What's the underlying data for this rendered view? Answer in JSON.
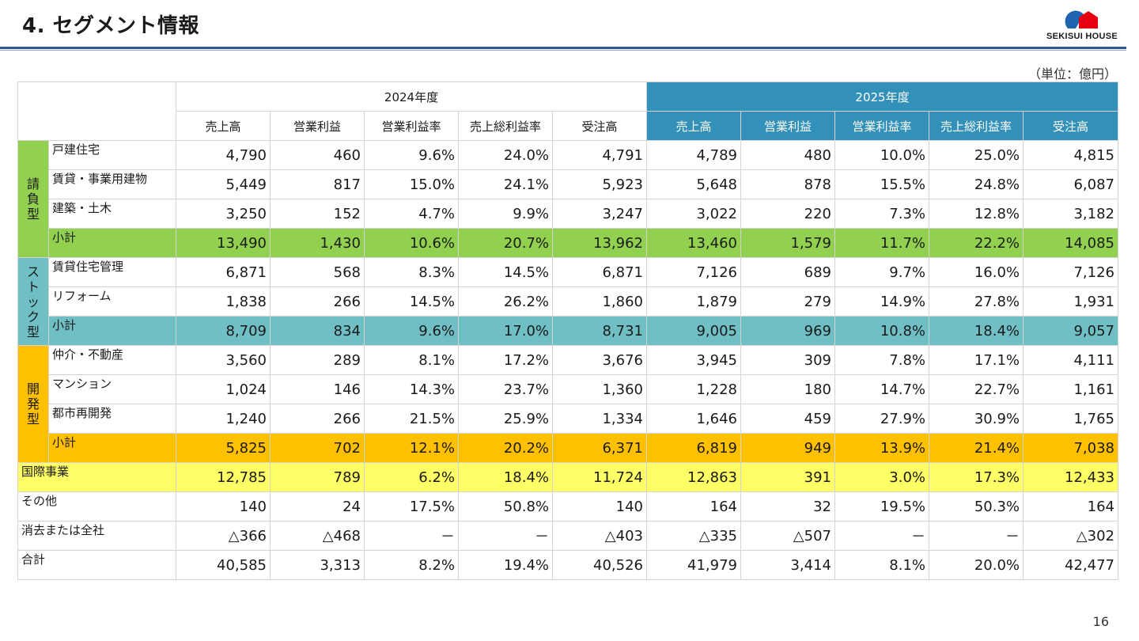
{
  "title": "4. セグメント情報",
  "logo": {
    "text": "SEKISUI HOUSE"
  },
  "unit": "（単位：億円）",
  "page_number": "16",
  "colors": {
    "header_2025": "#3391b9",
    "contract": "#92d050",
    "stock": "#6fbfc5",
    "development": "#ffc000",
    "international": "#ffff66",
    "title_rule": "#2f5597"
  },
  "years": [
    "2024年度",
    "2025年度"
  ],
  "columns": [
    "売上高",
    "営業利益",
    "営業利益率",
    "売上総利益率",
    "受注高",
    "売上高",
    "営業利益",
    "営業利益率",
    "売上総利益率",
    "受注高"
  ],
  "groups": [
    {
      "name": "請負型",
      "rows": [
        {
          "label": "戸建住宅",
          "values": [
            "4,790",
            "460",
            "9.6%",
            "24.0%",
            "4,791",
            "4,789",
            "480",
            "10.0%",
            "25.0%",
            "4,815"
          ]
        },
        {
          "label": "賃貸・事業用建物",
          "values": [
            "5,449",
            "817",
            "15.0%",
            "24.1%",
            "5,923",
            "5,648",
            "878",
            "15.5%",
            "24.8%",
            "6,087"
          ]
        },
        {
          "label": "建築・土木",
          "values": [
            "3,250",
            "152",
            "4.7%",
            "9.9%",
            "3,247",
            "3,022",
            "220",
            "7.3%",
            "12.8%",
            "3,182"
          ]
        }
      ],
      "subtotal": {
        "label": "小計",
        "values": [
          "13,490",
          "1,430",
          "10.6%",
          "20.7%",
          "13,962",
          "13,460",
          "1,579",
          "11.7%",
          "22.2%",
          "14,085"
        ]
      }
    },
    {
      "name": "ストック型",
      "rows": [
        {
          "label": "賃貸住宅管理",
          "values": [
            "6,871",
            "568",
            "8.3%",
            "14.5%",
            "6,871",
            "7,126",
            "689",
            "9.7%",
            "16.0%",
            "7,126"
          ]
        },
        {
          "label": "リフォーム",
          "values": [
            "1,838",
            "266",
            "14.5%",
            "26.2%",
            "1,860",
            "1,879",
            "279",
            "14.9%",
            "27.8%",
            "1,931"
          ]
        }
      ],
      "subtotal": {
        "label": "小計",
        "values": [
          "8,709",
          "834",
          "9.6%",
          "17.0%",
          "8,731",
          "9,005",
          "969",
          "10.8%",
          "18.4%",
          "9,057"
        ]
      }
    },
    {
      "name": "開発型",
      "rows": [
        {
          "label": "仲介・不動産",
          "values": [
            "3,560",
            "289",
            "8.1%",
            "17.2%",
            "3,676",
            "3,945",
            "309",
            "7.8%",
            "17.1%",
            "4,111"
          ]
        },
        {
          "label": "マンション",
          "values": [
            "1,024",
            "146",
            "14.3%",
            "23.7%",
            "1,360",
            "1,228",
            "180",
            "14.7%",
            "22.7%",
            "1,161"
          ]
        },
        {
          "label": "都市再開発",
          "values": [
            "1,240",
            "266",
            "21.5%",
            "25.9%",
            "1,334",
            "1,646",
            "459",
            "27.9%",
            "30.9%",
            "1,765"
          ]
        }
      ],
      "subtotal": {
        "label": "小計",
        "values": [
          "5,825",
          "702",
          "12.1%",
          "20.2%",
          "6,371",
          "6,819",
          "949",
          "13.9%",
          "21.4%",
          "7,038"
        ]
      }
    }
  ],
  "other_rows": [
    {
      "label": "国際事業",
      "values": [
        "12,785",
        "789",
        "6.2%",
        "18.4%",
        "11,724",
        "12,863",
        "391",
        "3.0%",
        "17.3%",
        "12,433"
      ]
    },
    {
      "label": "その他",
      "values": [
        "140",
        "24",
        "17.5%",
        "50.8%",
        "140",
        "164",
        "32",
        "19.5%",
        "50.3%",
        "164"
      ]
    },
    {
      "label": "消去または全社",
      "values": [
        "△366",
        "△468",
        "－",
        "－",
        "△403",
        "△335",
        "△507",
        "－",
        "－",
        "△302"
      ]
    },
    {
      "label": "合計",
      "values": [
        "40,585",
        "3,313",
        "8.2%",
        "19.4%",
        "40,526",
        "41,979",
        "3,414",
        "8.1%",
        "20.0%",
        "42,477"
      ]
    }
  ]
}
